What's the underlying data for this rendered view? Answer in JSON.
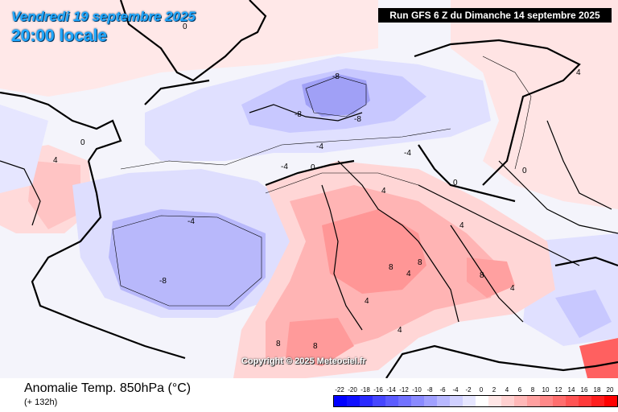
{
  "header": {
    "valid_date": "Vendredi 19 septembre 2025",
    "local_time": "20:00 locale",
    "run_info": "Run GFS 6 Z du Dimanche 14 septembre 2025"
  },
  "copyright": "Copyright © 2025 Meteociel.fr",
  "footer": {
    "variable": "Anomalie Temp. 850hPa (°C)",
    "lead_time": "(+ 132h)"
  },
  "legend": {
    "labels": [
      "-22",
      "-20",
      "-18",
      "-16",
      "-14",
      "-12",
      "-10",
      "-8",
      "-6",
      "-4",
      "-2",
      "0",
      "2",
      "4",
      "6",
      "8",
      "10",
      "12",
      "14",
      "16",
      "18",
      "20"
    ],
    "colors": [
      "#0000ff",
      "#1010ff",
      "#2a2aff",
      "#4646ff",
      "#5c5cff",
      "#7272ff",
      "#8a8aff",
      "#a0a0ff",
      "#b8b8ff",
      "#d0d0ff",
      "#e6e6ff",
      "#ffffff",
      "#ffe6e6",
      "#ffd0d0",
      "#ffb8b8",
      "#ffa0a0",
      "#ff8888",
      "#ff6e6e",
      "#ff5454",
      "#ff3a3a",
      "#ff1e1e",
      "#ff0000"
    ]
  },
  "map": {
    "contour_labels": [
      {
        "text": "-8"
      },
      {
        "text": "-8"
      },
      {
        "text": "-8"
      },
      {
        "text": "-8"
      },
      {
        "text": "-4"
      },
      {
        "text": "-4"
      },
      {
        "text": "-4"
      },
      {
        "text": "-4"
      },
      {
        "text": "0"
      },
      {
        "text": "0"
      },
      {
        "text": "0"
      },
      {
        "text": "0"
      },
      {
        "text": "0"
      },
      {
        "text": "4"
      },
      {
        "text": "4"
      },
      {
        "text": "4"
      },
      {
        "text": "4"
      },
      {
        "text": "4"
      },
      {
        "text": "4"
      },
      {
        "text": "4"
      },
      {
        "text": "4"
      },
      {
        "text": "8"
      },
      {
        "text": "8"
      },
      {
        "text": "8"
      },
      {
        "text": "8"
      },
      {
        "text": "8"
      }
    ]
  }
}
